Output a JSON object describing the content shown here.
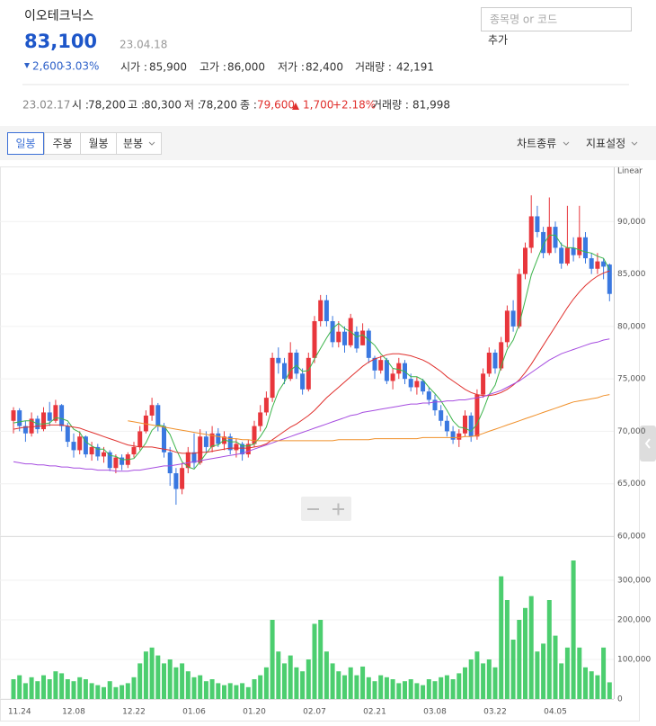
{
  "header": {
    "name": "이오테크닉스",
    "price": "83,100",
    "date": "23.04.18",
    "change": "2,600",
    "change_pct": "-3.03%",
    "open_label": "시가 :",
    "open": "85,900",
    "high_label": "고가 :",
    "high": "86,000",
    "low_label": "저가 :",
    "low": "82,400",
    "volume_label": "거래량 :",
    "volume": "42,191",
    "search_placeholder": "종목명 or 코드",
    "add_button": "추가"
  },
  "hover": {
    "date": "23.02.17",
    "open_label": "시 :",
    "open": "78,200",
    "high_label": "고 :",
    "high": "80,300",
    "low_label": "저 :",
    "low": "78,200",
    "close_label": "종 :",
    "close": "79,600",
    "change": "1,700",
    "change_pct": "+2.18%",
    "volume_label": "거래량 :",
    "volume": "81,998"
  },
  "toolbar": {
    "tabs": [
      "일봉",
      "주봉",
      "월봉",
      "분봉"
    ],
    "chart_type": "차트종류",
    "indicators": "지표설정"
  },
  "chart_data": [
    {
      "type": "candlestick",
      "axis_label": "Linear",
      "up_color": "#e8363c",
      "down_color": "#3a78e0",
      "categories": [
        null,
        "11.24",
        null,
        null,
        null,
        null,
        null,
        null,
        null,
        null,
        "12.08",
        null,
        null,
        null,
        null,
        null,
        null,
        null,
        null,
        null,
        "12.22",
        null,
        null,
        null,
        null,
        null,
        null,
        null,
        null,
        null,
        "01.06",
        null,
        null,
        null,
        null,
        null,
        null,
        null,
        null,
        null,
        "01.20",
        null,
        null,
        null,
        null,
        null,
        null,
        null,
        null,
        null,
        "02.07",
        null,
        null,
        null,
        null,
        null,
        null,
        null,
        null,
        null,
        "02.21",
        null,
        null,
        null,
        null,
        null,
        null,
        null,
        null,
        null,
        "03.08",
        null,
        null,
        null,
        null,
        null,
        null,
        null,
        null,
        null,
        "03.22",
        null,
        null,
        null,
        null,
        null,
        null,
        null,
        null,
        null,
        "04.05",
        null,
        null,
        null,
        null,
        null,
        null,
        null,
        null,
        null
      ],
      "open": [
        71000,
        72000,
        70500,
        69800,
        71200,
        70200,
        71800,
        71000,
        72500,
        70500,
        69000,
        68200,
        69500,
        67800,
        68500,
        67600,
        68000,
        66500,
        67500,
        66800,
        67800,
        68500,
        70000,
        71500,
        72500,
        70500,
        68000,
        66000,
        64500,
        66500,
        68000,
        67000,
        69500,
        68500,
        69800,
        68800,
        69500,
        68200,
        68800,
        67800,
        68800,
        70500,
        71800,
        73200,
        77000,
        76500,
        75000,
        77500,
        75500,
        74000,
        77000,
        80500,
        82500,
        80500,
        78500,
        79500,
        78200,
        79500,
        78200,
        79600,
        77000,
        75800,
        76800,
        74800,
        75500,
        76500,
        75000,
        74200,
        74800,
        73800,
        73000,
        72000,
        71000,
        70000,
        69200,
        69800,
        71500,
        69500,
        73500,
        75500,
        77500,
        76000,
        78500,
        81500,
        80000,
        85000,
        87500,
        90500,
        89000,
        87000,
        89500,
        87500,
        86000,
        87500,
        86800,
        88500,
        86500,
        85500,
        86200,
        85900
      ],
      "high": [
        72300,
        72200,
        71000,
        71800,
        71500,
        72300,
        72800,
        73000,
        72600,
        70800,
        69800,
        70000,
        69600,
        69000,
        68800,
        68500,
        68200,
        67800,
        67800,
        68000,
        69000,
        70500,
        72000,
        73200,
        72700,
        70800,
        68500,
        66500,
        67000,
        68500,
        69800,
        70200,
        70000,
        70500,
        70300,
        70000,
        69800,
        69300,
        69000,
        69200,
        71000,
        72500,
        73800,
        77500,
        78000,
        77000,
        78500,
        77800,
        76000,
        77500,
        81000,
        83000,
        83000,
        81000,
        80500,
        80000,
        81200,
        80000,
        80300,
        79800,
        77200,
        77200,
        77000,
        76000,
        77000,
        76800,
        75500,
        75200,
        75000,
        74200,
        73500,
        72500,
        71500,
        70500,
        70200,
        72000,
        71800,
        74000,
        76000,
        78000,
        77800,
        79000,
        82000,
        82500,
        85500,
        88000,
        92500,
        91500,
        89500,
        92300,
        90000,
        88000,
        91500,
        88500,
        91500,
        89000,
        87000,
        87000,
        86500,
        86000
      ],
      "low": [
        69800,
        70000,
        69000,
        69500,
        69800,
        70000,
        70500,
        70800,
        70000,
        68500,
        67500,
        67800,
        67500,
        67200,
        67200,
        67000,
        66200,
        66000,
        66300,
        66500,
        67500,
        68200,
        69800,
        71000,
        70000,
        67500,
        64800,
        63000,
        64000,
        66000,
        66500,
        66800,
        68000,
        68000,
        68500,
        68200,
        67800,
        67500,
        67200,
        67500,
        68500,
        70000,
        71500,
        72800,
        75500,
        74500,
        74800,
        75000,
        73500,
        73800,
        76500,
        80000,
        80000,
        78000,
        78000,
        77500,
        78000,
        77500,
        78200,
        76500,
        75000,
        75500,
        74500,
        74000,
        75000,
        74500,
        73800,
        73500,
        73500,
        72500,
        71500,
        70500,
        69500,
        68800,
        68500,
        69500,
        69000,
        69200,
        73200,
        75200,
        75500,
        75800,
        78000,
        79500,
        79800,
        84500,
        87000,
        88500,
        86500,
        86800,
        87000,
        85500,
        85800,
        86200,
        86500,
        86000,
        85000,
        85000,
        84500,
        82400
      ],
      "close": [
        72000,
        70500,
        69800,
        71200,
        70200,
        71800,
        71000,
        72500,
        70500,
        69000,
        68200,
        69500,
        67800,
        68500,
        67600,
        68000,
        66500,
        67500,
        66800,
        67800,
        68500,
        70000,
        71500,
        72500,
        70500,
        68000,
        66000,
        64500,
        66500,
        68000,
        67000,
        69500,
        68500,
        69800,
        68800,
        69500,
        68200,
        68800,
        67800,
        68800,
        70500,
        71800,
        73200,
        77000,
        76500,
        75000,
        77500,
        75500,
        74000,
        77000,
        80500,
        82500,
        80500,
        78500,
        79500,
        78200,
        80800,
        77900,
        79600,
        77000,
        75800,
        76800,
        74800,
        75500,
        76500,
        75000,
        74200,
        74800,
        73800,
        73000,
        72000,
        71000,
        70000,
        69200,
        69800,
        71500,
        69500,
        73500,
        75500,
        77500,
        76000,
        78500,
        81500,
        80000,
        85000,
        87500,
        90500,
        89000,
        87000,
        89500,
        87500,
        86000,
        87500,
        86800,
        88500,
        86500,
        85500,
        86200,
        85700,
        83100
      ],
      "series": [
        {
          "color": "#3cb44b",
          "values": [
            70800,
            70900,
            71000,
            71000,
            70700,
            70700,
            70800,
            71300,
            71200,
            71000,
            70200,
            69900,
            69000,
            68600,
            68300,
            68300,
            67700,
            67600,
            67300,
            67300,
            67400,
            68100,
            68900,
            70100,
            70600,
            70500,
            69700,
            68300,
            67100,
            66600,
            66400,
            67100,
            67900,
            68600,
            68700,
            69200,
            69000,
            69000,
            68600,
            68600,
            68800,
            69500,
            70400,
            72300,
            73800,
            74700,
            75800,
            76300,
            75700,
            75800,
            76900,
            77900,
            78900,
            79800,
            80300,
            79800,
            79500,
            79000,
            79200,
            78700,
            78200,
            77400,
            76800,
            76000,
            75900,
            75700,
            75200,
            75200,
            74900,
            74200,
            73600,
            72900,
            72000,
            71000,
            70400,
            70300,
            70000,
            70700,
            72000,
            73500,
            74400,
            76200,
            77800,
            78700,
            80200,
            82500,
            84900,
            86400,
            87800,
            88700,
            88700,
            87800,
            87500,
            87500,
            87300,
            87100,
            87000,
            86700,
            86500,
            85400
          ]
        },
        {
          "color": "#e0302d",
          "values": [
            70200,
            70300,
            70400,
            70400,
            70500,
            70500,
            70600,
            70600,
            70600,
            70500,
            70400,
            70300,
            70100,
            69900,
            69700,
            69500,
            69300,
            69100,
            68900,
            68700,
            68600,
            68500,
            68500,
            68500,
            68400,
            68300,
            68200,
            68000,
            67900,
            67900,
            67900,
            68000,
            68000,
            68100,
            68200,
            68300,
            68400,
            68400,
            68400,
            68400,
            68500,
            68600,
            68800,
            69200,
            69600,
            70000,
            70400,
            70700,
            71100,
            71500,
            72000,
            72600,
            73200,
            73700,
            74200,
            74700,
            75200,
            75700,
            76200,
            76600,
            76900,
            77100,
            77300,
            77400,
            77400,
            77300,
            77200,
            77000,
            76800,
            76500,
            76100,
            75700,
            75200,
            74800,
            74400,
            74000,
            73700,
            73500,
            73400,
            73400,
            73500,
            73700,
            74000,
            74400,
            74900,
            75600,
            76400,
            77300,
            78200,
            79100,
            80000,
            80900,
            81800,
            82600,
            83300,
            83900,
            84400,
            84800,
            85100,
            85300
          ]
        },
        {
          "color": "#a64de0",
          "values": [
            67100,
            67000,
            66900,
            66900,
            66800,
            66800,
            66700,
            66700,
            66600,
            66600,
            66500,
            66500,
            66400,
            66400,
            66300,
            66300,
            66300,
            66200,
            66200,
            66200,
            66300,
            66300,
            66400,
            66500,
            66600,
            66700,
            66700,
            66800,
            66900,
            67000,
            67100,
            67200,
            67300,
            67400,
            67500,
            67600,
            67700,
            67800,
            67900,
            68100,
            68300,
            68500,
            68700,
            68900,
            69100,
            69300,
            69500,
            69700,
            69900,
            70100,
            70300,
            70500,
            70700,
            70900,
            71100,
            71300,
            71500,
            71600,
            71800,
            71900,
            72000,
            72100,
            72200,
            72300,
            72400,
            72500,
            72600,
            72600,
            72700,
            72700,
            72800,
            72800,
            72900,
            72900,
            73000,
            73000,
            73100,
            73200,
            73300,
            73500,
            73700,
            73900,
            74200,
            74500,
            74800,
            75200,
            75600,
            76000,
            76400,
            76800,
            77100,
            77400,
            77600,
            77800,
            78000,
            78200,
            78400,
            78500,
            78700,
            78800
          ]
        },
        {
          "color": "#f0902a",
          "values": [
            null,
            null,
            null,
            null,
            null,
            null,
            null,
            null,
            null,
            null,
            null,
            null,
            null,
            null,
            null,
            null,
            null,
            null,
            null,
            71000,
            70900,
            70800,
            70700,
            70600,
            70500,
            70400,
            70300,
            70200,
            70100,
            70000,
            69900,
            69800,
            69700,
            69600,
            69500,
            69400,
            69300,
            69300,
            69200,
            69200,
            69100,
            69100,
            69100,
            69100,
            69100,
            69100,
            69100,
            69100,
            69100,
            69100,
            69100,
            69100,
            69100,
            69100,
            69200,
            69200,
            69200,
            69200,
            69200,
            69200,
            69300,
            69300,
            69300,
            69300,
            69300,
            69300,
            69300,
            69300,
            69400,
            69400,
            69400,
            69400,
            69400,
            69400,
            69400,
            69500,
            69500,
            69600,
            69800,
            70000,
            70200,
            70400,
            70600,
            70800,
            71000,
            71200,
            71400,
            71600,
            71800,
            72000,
            72200,
            72400,
            72600,
            72800,
            72900,
            73000,
            73100,
            73200,
            73400,
            73500
          ]
        }
      ],
      "ylim": [
        60000,
        95000
      ],
      "yticks": [
        {
          "value": 60000,
          "label": "60,000"
        },
        {
          "value": 65000,
          "label": "65,000"
        },
        {
          "value": 70000,
          "label": "70,000"
        },
        {
          "value": 75000,
          "label": "75,000"
        },
        {
          "value": 80000,
          "label": "80,000"
        },
        {
          "value": 85000,
          "label": "85,000"
        },
        {
          "value": 90000,
          "label": "90,000"
        }
      ],
      "grid": true
    },
    {
      "type": "bar",
      "color": "#4cce6f",
      "values": [
        50000,
        60000,
        40000,
        55000,
        45000,
        60000,
        50000,
        70000,
        65000,
        50000,
        45000,
        55000,
        50000,
        40000,
        35000,
        30000,
        45000,
        30000,
        35000,
        40000,
        55000,
        90000,
        120000,
        130000,
        110000,
        90000,
        100000,
        80000,
        90000,
        70000,
        55000,
        60000,
        45000,
        50000,
        40000,
        35000,
        40000,
        35000,
        40000,
        30000,
        50000,
        60000,
        80000,
        200000,
        120000,
        90000,
        110000,
        80000,
        70000,
        100000,
        190000,
        200000,
        120000,
        90000,
        70000,
        60000,
        80000,
        60000,
        81998,
        55000,
        45000,
        60000,
        55000,
        50000,
        40000,
        45000,
        50000,
        40000,
        35000,
        50000,
        45000,
        55000,
        60000,
        50000,
        65000,
        80000,
        100000,
        120000,
        90000,
        100000,
        80000,
        310000,
        250000,
        150000,
        200000,
        230000,
        260000,
        120000,
        140000,
        250000,
        160000,
        90000,
        130000,
        350000,
        130000,
        80000,
        70000,
        60000,
        130000,
        42191
      ],
      "ylim": [
        0,
        400000
      ],
      "yticks": [
        0,
        {
          "value": 100000,
          "label": "100,000"
        },
        {
          "value": 200000,
          "label": "200,000"
        },
        {
          "value": 300000,
          "label": "300,000"
        }
      ],
      "grid": true
    }
  ]
}
